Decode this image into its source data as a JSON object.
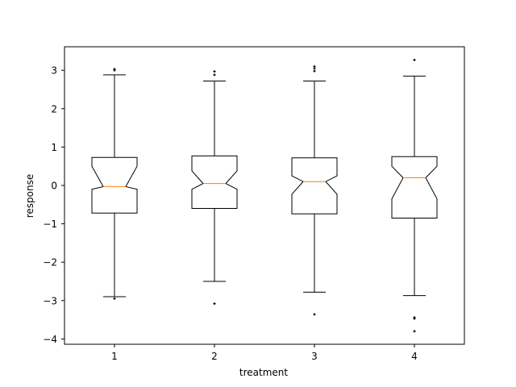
{
  "chart_data": {
    "type": "boxplot",
    "title": "",
    "xlabel": "treatment",
    "ylabel": "response",
    "categories": [
      "1",
      "2",
      "3",
      "4"
    ],
    "ylim": [
      -4.15,
      3.6
    ],
    "yticks": [
      3,
      2,
      1,
      0,
      -1,
      -2,
      -3,
      -4
    ],
    "ytick_labels": [
      "3",
      "2",
      "1",
      "0",
      "−1",
      "−2",
      "−3",
      "−4"
    ],
    "xticks": [
      1,
      2,
      3,
      4
    ],
    "xtick_labels": [
      "1",
      "2",
      "3",
      "4"
    ],
    "grid": false,
    "notched": true,
    "colors": {
      "box": "#000000",
      "median": "#ff7f0e",
      "outlier": "#000000"
    },
    "series": [
      {
        "name": "1",
        "whisker_high": 2.88,
        "q3": 0.73,
        "median": -0.03,
        "q1": -0.72,
        "whisker_low": -2.9,
        "notch_high": 0.5,
        "notch_low": -0.1,
        "outliers": [
          3.0,
          3.03,
          -2.95
        ]
      },
      {
        "name": "2",
        "whisker_high": 2.72,
        "q3": 0.77,
        "median": 0.05,
        "q1": -0.6,
        "whisker_low": -2.5,
        "notch_high": 0.38,
        "notch_low": -0.1,
        "outliers": [
          2.97,
          2.88,
          -3.08
        ]
      },
      {
        "name": "3",
        "whisker_high": 2.72,
        "q3": 0.72,
        "median": 0.1,
        "q1": -0.74,
        "whisker_low": -2.78,
        "notch_high": 0.25,
        "notch_low": -0.23,
        "outliers": [
          3.1,
          3.05,
          2.98,
          -3.36
        ]
      },
      {
        "name": "4",
        "whisker_high": 2.85,
        "q3": 0.75,
        "median": 0.2,
        "q1": -0.85,
        "whisker_low": -2.87,
        "notch_high": 0.5,
        "notch_low": -0.35,
        "outliers": [
          3.27,
          -3.44,
          -3.47,
          -3.8
        ]
      }
    ]
  }
}
